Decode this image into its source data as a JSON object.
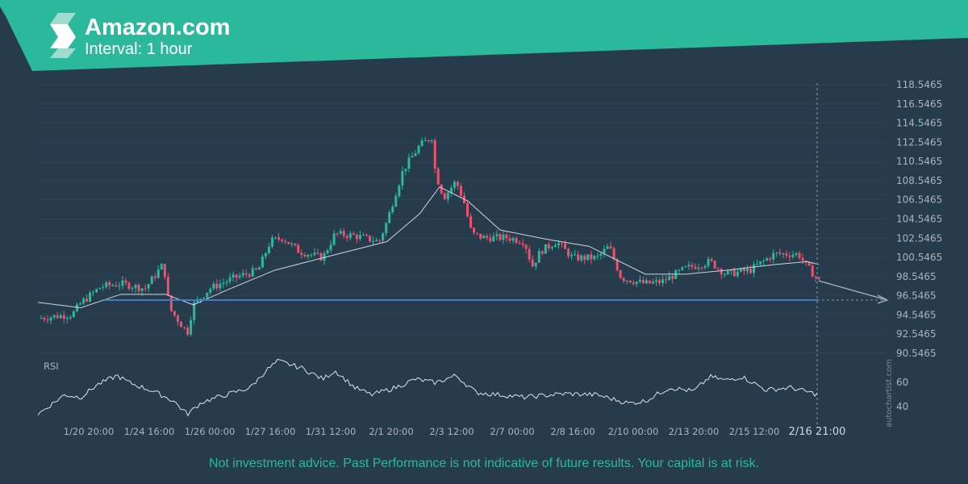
{
  "header": {
    "title": "Amazon.com",
    "subtitle": "Interval: 1 hour",
    "logo": "autochartist-logo"
  },
  "colors": {
    "brand": "#2bb99c",
    "background": "#263b4c",
    "up": "#2bb99c",
    "down": "#f0506e",
    "level": "#4a78c0",
    "ma": "#cfd6dc"
  },
  "chart_data": {
    "type": "candlestick",
    "y_ticks": [
      "118.5465",
      "116.5465",
      "114.5465",
      "112.5465",
      "110.5465",
      "108.5465",
      "106.5465",
      "104.5465",
      "102.5465",
      "100.5465",
      "98.5465",
      "96.5465",
      "94.5465",
      "92.5465",
      "90.5465"
    ],
    "ylim": [
      90.5465,
      118.5465
    ],
    "x_ticks": [
      "1/20 20:00",
      "1/24 16:00",
      "1/26 00:00",
      "1/27 16:00",
      "1/31 12:00",
      "2/1 20:00",
      "2/3 12:00",
      "2/7 00:00",
      "2/8 16:00",
      "2/10 00:00",
      "2/13 20:00",
      "2/15 12:00",
      "2/16 21:00"
    ],
    "price_path": [
      [
        -0.84,
        94.2
      ],
      [
        -0.27,
        94.6
      ],
      [
        -0.13,
        95.8
      ],
      [
        0.2,
        97.5
      ],
      [
        0.53,
        97.8
      ],
      [
        0.93,
        97.3
      ],
      [
        1.24,
        99.9
      ],
      [
        1.29,
        96.9
      ],
      [
        1.36,
        95.0
      ],
      [
        1.63,
        92.7
      ],
      [
        1.73,
        95.6
      ],
      [
        2.0,
        97.3
      ],
      [
        2.4,
        98.4
      ],
      [
        2.8,
        99.2
      ],
      [
        3.0,
        102.2
      ],
      [
        3.2,
        102.6
      ],
      [
        3.47,
        101.2
      ],
      [
        3.87,
        100.5
      ],
      [
        4.07,
        103.0
      ],
      [
        4.4,
        102.8
      ],
      [
        4.8,
        102.2
      ],
      [
        4.93,
        104.3
      ],
      [
        5.07,
        107.2
      ],
      [
        5.2,
        109.7
      ],
      [
        5.47,
        112.2
      ],
      [
        5.67,
        113.1
      ],
      [
        5.73,
        109.3
      ],
      [
        5.87,
        106.8
      ],
      [
        6.07,
        108.5
      ],
      [
        6.2,
        106.4
      ],
      [
        6.33,
        103.0
      ],
      [
        6.53,
        102.6
      ],
      [
        6.93,
        102.6
      ],
      [
        7.2,
        102.2
      ],
      [
        7.33,
        99.6
      ],
      [
        7.47,
        101.2
      ],
      [
        7.73,
        102.2
      ],
      [
        8.0,
        100.5
      ],
      [
        8.4,
        100.5
      ],
      [
        8.6,
        101.7
      ],
      [
        8.8,
        98.4
      ],
      [
        9.2,
        97.8
      ],
      [
        9.47,
        98.0
      ],
      [
        9.87,
        99.4
      ],
      [
        10.27,
        100.1
      ],
      [
        10.53,
        98.8
      ],
      [
        10.93,
        99.2
      ],
      [
        11.33,
        100.9
      ],
      [
        11.73,
        100.9
      ],
      [
        11.87,
        99.6
      ],
      [
        12.07,
        98.1
      ]
    ],
    "moving_average": [
      [
        -0.84,
        95.85
      ],
      [
        -0.13,
        95.3
      ],
      [
        0.53,
        96.7
      ],
      [
        1.27,
        96.7
      ],
      [
        1.73,
        95.6
      ],
      [
        2.27,
        97.1
      ],
      [
        3.07,
        99.2
      ],
      [
        3.87,
        100.5
      ],
      [
        4.93,
        102.2
      ],
      [
        5.47,
        105.1
      ],
      [
        5.8,
        107.9
      ],
      [
        6.27,
        106.4
      ],
      [
        6.8,
        103.4
      ],
      [
        7.6,
        102.4
      ],
      [
        8.27,
        101.7
      ],
      [
        9.2,
        98.8
      ],
      [
        9.87,
        98.8
      ],
      [
        10.53,
        99.2
      ],
      [
        11.33,
        99.8
      ],
      [
        11.87,
        100.1
      ],
      [
        12.07,
        99.8
      ]
    ],
    "support_level": 96.1,
    "forecast_target": 96.1,
    "rsi": {
      "label": "RSI",
      "ticks": [
        "60",
        "40"
      ],
      "path": [
        [
          -0.84,
          33
        ],
        [
          -0.4,
          49
        ],
        [
          -0.13,
          47
        ],
        [
          0.13,
          57
        ],
        [
          0.47,
          65
        ],
        [
          0.67,
          59
        ],
        [
          1.07,
          52
        ],
        [
          1.4,
          44
        ],
        [
          1.63,
          33
        ],
        [
          1.87,
          43
        ],
        [
          2.27,
          49
        ],
        [
          2.67,
          55
        ],
        [
          2.93,
          69
        ],
        [
          3.13,
          77
        ],
        [
          3.53,
          71
        ],
        [
          3.87,
          62
        ],
        [
          4.07,
          69
        ],
        [
          4.4,
          55
        ],
        [
          4.67,
          49
        ],
        [
          5.07,
          55
        ],
        [
          5.4,
          62
        ],
        [
          5.73,
          59
        ],
        [
          6.07,
          65
        ],
        [
          6.4,
          51
        ],
        [
          6.8,
          49
        ],
        [
          7.2,
          47
        ],
        [
          7.87,
          50
        ],
        [
          8.4,
          49
        ],
        [
          8.93,
          42
        ],
        [
          9.2,
          44
        ],
        [
          9.6,
          55
        ],
        [
          10.0,
          52
        ],
        [
          10.27,
          64
        ],
        [
          10.53,
          61
        ],
        [
          10.8,
          64
        ],
        [
          11.2,
          53
        ],
        [
          11.6,
          55
        ],
        [
          12.07,
          49
        ]
      ]
    }
  },
  "watermark": "autochartist.com",
  "footer": "Not investment advice. Past Performance is not indicative of future results. Your capital is at risk."
}
